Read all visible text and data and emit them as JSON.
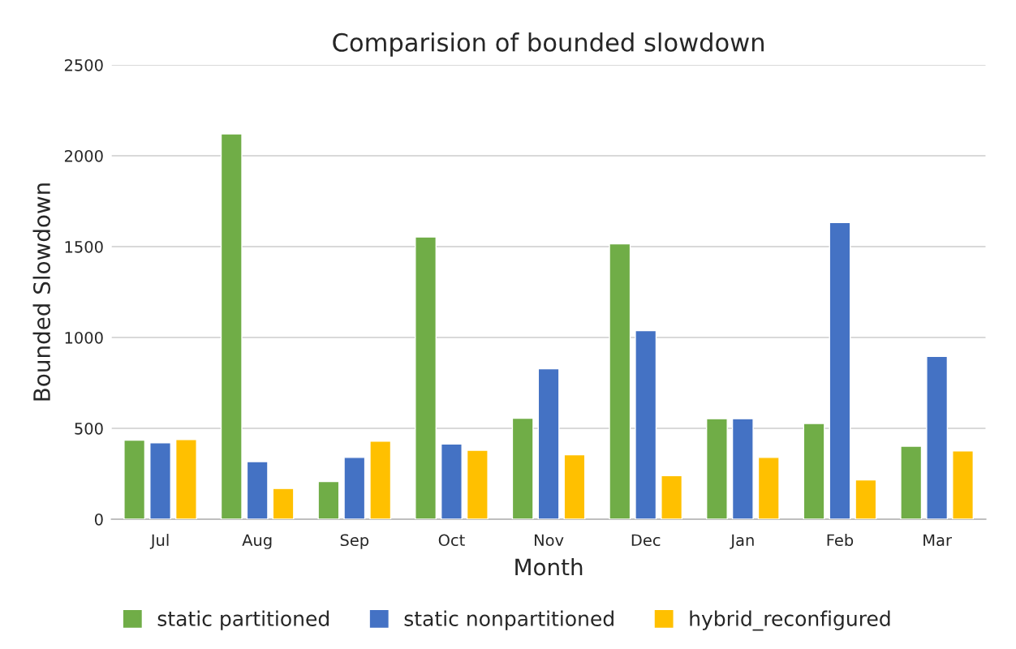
{
  "chart_data": {
    "type": "bar",
    "title": "Comparision of bounded slowdown",
    "xlabel": "Month",
    "ylabel": "Bounded Slowdown",
    "categories": [
      "Jul",
      "Aug",
      "Sep",
      "Oct",
      "Nov",
      "Dec",
      "Jan",
      "Feb",
      "Mar"
    ],
    "series": [
      {
        "name": "static partitioned",
        "color": "#70ad47",
        "values": [
          435,
          2120,
          207,
          1553,
          556,
          1515,
          553,
          527,
          402
        ]
      },
      {
        "name": "static nonpartitioned",
        "color": "#4472c4",
        "values": [
          420,
          317,
          340,
          414,
          828,
          1038,
          553,
          1633,
          896
        ]
      },
      {
        "name": "hybrid_reconfigured",
        "color": "#ffc000",
        "values": [
          438,
          169,
          429,
          379,
          355,
          240,
          340,
          216,
          376
        ]
      }
    ],
    "ylim": [
      0,
      2500
    ],
    "yticks": [
      0,
      500,
      1000,
      1500,
      2000,
      2500
    ],
    "grid": "y",
    "legend": "bottom"
  }
}
